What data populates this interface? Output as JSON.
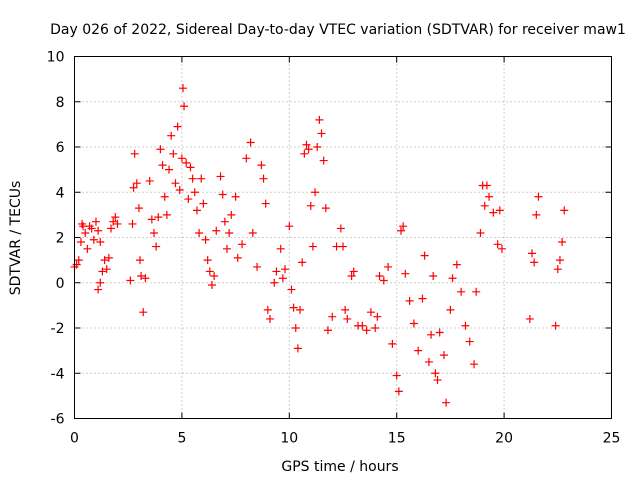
{
  "chart_data": {
    "type": "scatter",
    "title": "Day 026 of 2022, Sidereal Day-to-day VTEC variation (SDTVAR) for receiver maw1",
    "xlabel": "GPS time / hours",
    "ylabel": "SDTVAR / TECUs",
    "xlim": [
      0,
      25
    ],
    "ylim": [
      -6,
      10
    ],
    "xticks": [
      0,
      5,
      10,
      15,
      20,
      25
    ],
    "yticks": [
      -6,
      -4,
      -2,
      0,
      2,
      4,
      6,
      8,
      10
    ],
    "grid": true,
    "marker": "+",
    "color": "#ff0000",
    "series": [
      {
        "name": "maw1",
        "points": [
          [
            0.0,
            0.7
          ],
          [
            0.1,
            0.8
          ],
          [
            0.2,
            1.0
          ],
          [
            0.3,
            1.8
          ],
          [
            0.35,
            2.6
          ],
          [
            0.4,
            2.5
          ],
          [
            0.5,
            2.2
          ],
          [
            0.6,
            1.5
          ],
          [
            0.7,
            2.5
          ],
          [
            0.8,
            2.4
          ],
          [
            0.9,
            1.9
          ],
          [
            1.0,
            2.7
          ],
          [
            1.1,
            2.3
          ],
          [
            1.2,
            1.8
          ],
          [
            1.1,
            -0.3
          ],
          [
            1.2,
            0.0
          ],
          [
            1.3,
            0.5
          ],
          [
            1.4,
            1.0
          ],
          [
            1.5,
            0.6
          ],
          [
            1.6,
            1.1
          ],
          [
            1.7,
            2.4
          ],
          [
            1.8,
            2.7
          ],
          [
            1.9,
            2.9
          ],
          [
            2.0,
            2.6
          ],
          [
            2.6,
            0.1
          ],
          [
            2.7,
            2.6
          ],
          [
            2.75,
            4.2
          ],
          [
            2.8,
            5.7
          ],
          [
            2.9,
            4.4
          ],
          [
            3.0,
            3.3
          ],
          [
            3.05,
            1.0
          ],
          [
            3.1,
            0.3
          ],
          [
            3.2,
            -1.3
          ],
          [
            3.3,
            0.2
          ],
          [
            3.5,
            4.5
          ],
          [
            3.6,
            2.8
          ],
          [
            3.7,
            2.2
          ],
          [
            3.8,
            1.6
          ],
          [
            3.9,
            2.9
          ],
          [
            4.0,
            5.9
          ],
          [
            4.1,
            5.2
          ],
          [
            4.2,
            3.8
          ],
          [
            4.3,
            3.0
          ],
          [
            4.4,
            5.0
          ],
          [
            4.5,
            6.5
          ],
          [
            4.6,
            5.7
          ],
          [
            4.7,
            4.4
          ],
          [
            4.8,
            6.9
          ],
          [
            4.9,
            4.1
          ],
          [
            5.0,
            5.5
          ],
          [
            5.05,
            8.6
          ],
          [
            5.1,
            7.8
          ],
          [
            5.2,
            5.3
          ],
          [
            5.3,
            3.7
          ],
          [
            5.4,
            5.1
          ],
          [
            5.5,
            4.6
          ],
          [
            5.6,
            4.0
          ],
          [
            5.7,
            3.2
          ],
          [
            5.8,
            2.2
          ],
          [
            5.9,
            4.6
          ],
          [
            6.0,
            3.5
          ],
          [
            6.1,
            1.9
          ],
          [
            6.2,
            1.0
          ],
          [
            6.3,
            0.5
          ],
          [
            6.4,
            -0.1
          ],
          [
            6.5,
            0.3
          ],
          [
            6.6,
            2.3
          ],
          [
            6.8,
            4.7
          ],
          [
            6.9,
            3.9
          ],
          [
            7.0,
            2.7
          ],
          [
            7.1,
            1.5
          ],
          [
            7.2,
            2.2
          ],
          [
            7.3,
            3.0
          ],
          [
            7.5,
            3.8
          ],
          [
            7.6,
            1.1
          ],
          [
            7.8,
            1.7
          ],
          [
            8.0,
            5.5
          ],
          [
            8.2,
            6.2
          ],
          [
            8.3,
            2.2
          ],
          [
            8.5,
            0.7
          ],
          [
            8.7,
            5.2
          ],
          [
            8.8,
            4.6
          ],
          [
            8.9,
            3.5
          ],
          [
            9.0,
            -1.2
          ],
          [
            9.1,
            -1.6
          ],
          [
            9.3,
            0.0
          ],
          [
            9.4,
            0.5
          ],
          [
            9.6,
            1.5
          ],
          [
            9.7,
            0.2
          ],
          [
            9.8,
            0.6
          ],
          [
            10.0,
            2.5
          ],
          [
            10.1,
            -0.3
          ],
          [
            10.2,
            -1.1
          ],
          [
            10.3,
            -2.0
          ],
          [
            10.4,
            -2.9
          ],
          [
            10.5,
            -1.2
          ],
          [
            10.6,
            0.9
          ],
          [
            10.7,
            5.7
          ],
          [
            10.8,
            6.1
          ],
          [
            10.9,
            5.9
          ],
          [
            11.0,
            3.4
          ],
          [
            11.1,
            1.6
          ],
          [
            11.2,
            4.0
          ],
          [
            11.3,
            6.0
          ],
          [
            11.4,
            7.2
          ],
          [
            11.5,
            6.6
          ],
          [
            11.6,
            5.4
          ],
          [
            11.7,
            3.3
          ],
          [
            11.8,
            -2.1
          ],
          [
            12.0,
            -1.5
          ],
          [
            12.2,
            1.6
          ],
          [
            12.4,
            2.4
          ],
          [
            12.5,
            1.6
          ],
          [
            12.6,
            -1.2
          ],
          [
            12.7,
            -1.6
          ],
          [
            12.9,
            0.3
          ],
          [
            13.0,
            0.5
          ],
          [
            13.2,
            -1.9
          ],
          [
            13.4,
            -1.9
          ],
          [
            13.6,
            -2.1
          ],
          [
            13.8,
            -1.3
          ],
          [
            14.0,
            -2.0
          ],
          [
            14.1,
            -1.5
          ],
          [
            14.2,
            0.3
          ],
          [
            14.4,
            0.1
          ],
          [
            14.6,
            0.7
          ],
          [
            14.8,
            -2.7
          ],
          [
            15.0,
            -4.1
          ],
          [
            15.1,
            -4.8
          ],
          [
            15.2,
            2.3
          ],
          [
            15.3,
            2.5
          ],
          [
            15.4,
            0.4
          ],
          [
            15.6,
            -0.8
          ],
          [
            15.8,
            -1.8
          ],
          [
            16.0,
            -3.0
          ],
          [
            16.2,
            -0.7
          ],
          [
            16.3,
            1.2
          ],
          [
            16.5,
            -3.5
          ],
          [
            16.6,
            -2.3
          ],
          [
            16.7,
            0.3
          ],
          [
            16.8,
            -4.0
          ],
          [
            16.9,
            -4.3
          ],
          [
            17.0,
            -2.2
          ],
          [
            17.2,
            -3.2
          ],
          [
            17.3,
            -5.3
          ],
          [
            17.5,
            -1.2
          ],
          [
            17.6,
            0.2
          ],
          [
            17.8,
            0.8
          ],
          [
            18.0,
            -0.4
          ],
          [
            18.2,
            -1.9
          ],
          [
            18.4,
            -2.6
          ],
          [
            18.6,
            -3.6
          ],
          [
            18.7,
            -0.4
          ],
          [
            18.9,
            2.2
          ],
          [
            19.0,
            4.3
          ],
          [
            19.1,
            3.4
          ],
          [
            19.2,
            4.3
          ],
          [
            19.3,
            3.8
          ],
          [
            19.5,
            3.1
          ],
          [
            19.7,
            1.7
          ],
          [
            19.8,
            3.2
          ],
          [
            19.9,
            1.5
          ],
          [
            21.2,
            -1.6
          ],
          [
            21.3,
            1.3
          ],
          [
            21.4,
            0.9
          ],
          [
            21.5,
            3.0
          ],
          [
            21.6,
            3.8
          ],
          [
            22.4,
            -1.9
          ],
          [
            22.5,
            0.6
          ],
          [
            22.6,
            1.0
          ],
          [
            22.7,
            1.8
          ],
          [
            22.8,
            3.2
          ]
        ]
      }
    ]
  }
}
